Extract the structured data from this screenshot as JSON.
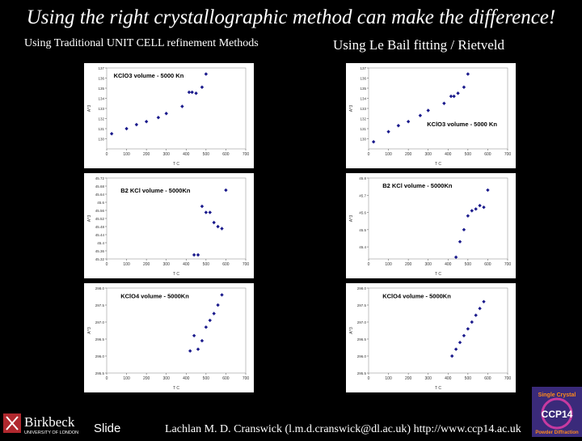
{
  "slide": {
    "title": "Using the right crystallographic method can make the difference!",
    "subtitle_left": "Using Traditional UNIT CELL refinement Methods",
    "subtitle_right": "Using Le Bail fitting / Rietveld",
    "footer_slide": "Slide",
    "footer_author": "Lachlan M. D. Cranswick (l.m.d.cranswick@dl.ac.uk) http://www.ccp14.ac.uk",
    "logo_left": {
      "name": "Birkbeck",
      "sub": "UNIVERSITY OF LONDON"
    },
    "logo_right": {
      "top": "Single Crystal",
      "main": "CCP14",
      "bottom": "Powder Diffraction"
    }
  },
  "chart_data": [
    {
      "type": "scatter",
      "title": "KClO3 volume - 5000 Kn",
      "xlabel": "T C",
      "ylabel": "A^3",
      "xlim": [
        0,
        700
      ],
      "x_ticks": [
        "0",
        "100",
        "200",
        "300",
        "400",
        "500",
        "600",
        "700"
      ],
      "ylim": [
        129.0,
        137.0
      ],
      "y_ticks": [
        "130",
        "131",
        "132",
        "133",
        "134",
        "135",
        "136",
        "137"
      ],
      "x": [
        25,
        100,
        150,
        200,
        260,
        300,
        380,
        415,
        430,
        450,
        480,
        500
      ],
      "y": [
        130.5,
        131.0,
        131.4,
        131.7,
        132.1,
        132.5,
        133.2,
        134.6,
        134.6,
        134.5,
        135.1,
        136.4
      ]
    },
    {
      "type": "scatter",
      "title": "KClO3 volume - 5000 Kn",
      "xlabel": "T C",
      "ylabel": "A^3",
      "xlim": [
        0,
        700
      ],
      "x_ticks": [
        "0",
        "100",
        "200",
        "300",
        "400",
        "500",
        "600",
        "700"
      ],
      "ylim": [
        129.0,
        137.0
      ],
      "y_ticks": [
        "130",
        "131",
        "132",
        "133",
        "134",
        "135",
        "136",
        "137"
      ],
      "x": [
        25,
        100,
        150,
        200,
        260,
        300,
        380,
        415,
        430,
        450,
        480,
        500
      ],
      "y": [
        129.7,
        130.7,
        131.3,
        131.7,
        132.3,
        132.8,
        133.5,
        134.2,
        134.2,
        134.5,
        135.1,
        136.4
      ]
    },
    {
      "type": "scatter",
      "title": "B2 KCl volume - 5000Kn",
      "xlabel": "T C",
      "ylabel": "A^3",
      "xlim": [
        0,
        700
      ],
      "x_ticks": [
        "0",
        "100",
        "200",
        "300",
        "400",
        "500",
        "600",
        "700"
      ],
      "ylim": [
        45.32,
        45.72
      ],
      "y_ticks": [
        "45.32",
        "45.36",
        "45.4",
        "45.44",
        "45.48",
        "45.52",
        "45.56",
        "45.6",
        "45.64",
        "45.68",
        "45.72"
      ],
      "x": [
        440,
        460,
        480,
        500,
        520,
        540,
        560,
        580,
        600
      ],
      "y": [
        45.34,
        45.34,
        45.58,
        45.55,
        45.55,
        45.5,
        45.48,
        45.47,
        45.66
      ]
    },
    {
      "type": "scatter",
      "title": "B2 KCl volume - 5000Kn",
      "xlabel": "T C",
      "ylabel": "A^3",
      "xlim": [
        0,
        700
      ],
      "x_ticks": [
        "0",
        "100",
        "200",
        "300",
        "400",
        "500",
        "600",
        "700"
      ],
      "ylim": [
        45.33,
        45.8
      ],
      "y_ticks": [
        "45.4",
        "45.5",
        "45.6",
        "45.7",
        "45.8"
      ],
      "x": [
        440,
        460,
        480,
        500,
        520,
        540,
        560,
        580,
        600
      ],
      "y": [
        45.34,
        45.43,
        45.5,
        45.58,
        45.61,
        45.62,
        45.64,
        45.63,
        45.73
      ]
    },
    {
      "type": "scatter",
      "title": "KClO4 volume - 5000Kn",
      "xlabel": "T C",
      "ylabel": "A^3",
      "xlim": [
        0,
        700
      ],
      "x_ticks": [
        "0",
        "100",
        "200",
        "300",
        "400",
        "500",
        "600",
        "700"
      ],
      "ylim": [
        295.5,
        298.0
      ],
      "y_ticks": [
        "295.5",
        "296.0",
        "296.5",
        "297.0",
        "297.5",
        "298.0"
      ],
      "x": [
        420,
        440,
        460,
        480,
        500,
        520,
        540,
        560,
        580
      ],
      "y": [
        296.15,
        296.6,
        296.2,
        296.45,
        296.85,
        297.05,
        297.25,
        297.5,
        297.8
      ]
    },
    {
      "type": "scatter",
      "title": "KClO4 volume - 5000Kn",
      "xlabel": "T C",
      "ylabel": "A^3",
      "xlim": [
        0,
        700
      ],
      "x_ticks": [
        "0",
        "100",
        "200",
        "300",
        "400",
        "500",
        "600",
        "700"
      ],
      "ylim": [
        295.5,
        298.0
      ],
      "y_ticks": [
        "295.5",
        "296.0",
        "296.5",
        "297.0",
        "297.5",
        "298.0"
      ],
      "x": [
        420,
        440,
        460,
        480,
        500,
        520,
        540,
        560,
        580
      ],
      "y": [
        296.0,
        296.2,
        296.4,
        296.6,
        296.8,
        297.0,
        297.2,
        297.4,
        297.6
      ]
    }
  ]
}
